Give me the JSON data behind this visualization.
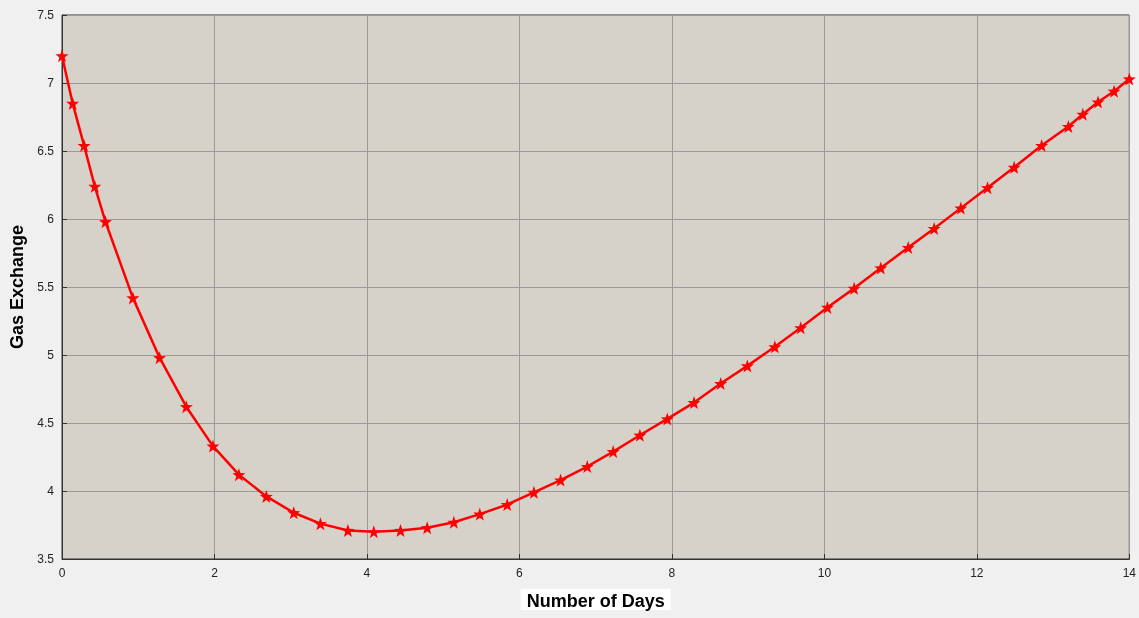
{
  "chart_data": {
    "type": "line",
    "xlabel": "Number of Days",
    "ylabel": "Gas Exchange",
    "x": [
      0,
      0.14,
      0.29,
      0.43,
      0.57,
      0.93,
      1.28,
      1.63,
      1.98,
      2.32,
      2.68,
      3.04,
      3.39,
      3.75,
      4.09,
      4.44,
      4.79,
      5.14,
      5.48,
      5.84,
      6.19,
      6.54,
      6.89,
      7.23,
      7.58,
      7.94,
      8.29,
      8.64,
      8.99,
      9.35,
      9.69,
      10.04,
      10.39,
      10.74,
      11.1,
      11.44,
      11.79,
      12.14,
      12.49,
      12.85,
      13.2,
      13.39,
      13.59,
      13.8,
      14
    ],
    "series": [
      {
        "color": "#ff0000",
        "values": [
          7.2,
          6.85,
          6.54,
          6.24,
          5.98,
          5.42,
          4.98,
          4.62,
          4.33,
          4.12,
          3.96,
          3.84,
          3.76,
          3.71,
          3.7,
          3.71,
          3.73,
          3.77,
          3.83,
          3.9,
          3.99,
          4.08,
          4.18,
          4.29,
          4.41,
          4.53,
          4.65,
          4.79,
          4.92,
          5.06,
          5.2,
          5.35,
          5.49,
          5.64,
          5.79,
          5.93,
          6.08,
          6.23,
          6.38,
          6.54,
          6.68,
          6.77,
          6.86,
          6.94,
          7.03
        ]
      }
    ],
    "xlim": [
      0,
      14
    ],
    "xticks": [
      0,
      2,
      4,
      6,
      8,
      10,
      12,
      14
    ],
    "ylim": [
      3.5,
      7.5
    ],
    "yticks": [
      3.5,
      4,
      4.5,
      5,
      5.5,
      6,
      6.5,
      7,
      7.5
    ],
    "grid": true,
    "marker": "star",
    "line_style": "solid"
  }
}
